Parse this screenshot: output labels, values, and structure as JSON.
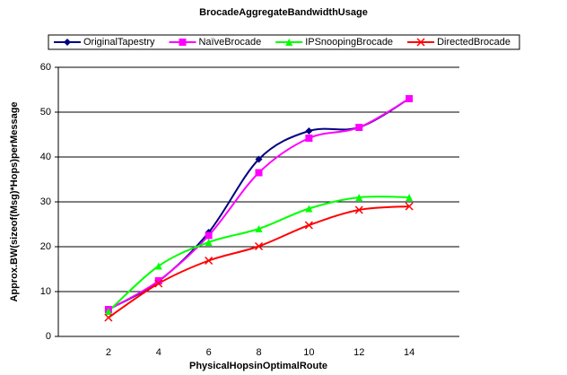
{
  "chart_data": {
    "type": "line",
    "title": "BrocadeAggregateBandwidthUsage",
    "x_label": "PhysicalHopsinOptimalRoute",
    "y_label": "Approx.BW(sizeof(Msg)*Hops)perMessage",
    "x": [
      2,
      4,
      6,
      8,
      10,
      12,
      14
    ],
    "xlim": [
      0,
      16
    ],
    "xticks": [
      2,
      4,
      6,
      8,
      10,
      12,
      14
    ],
    "ylim": [
      0,
      60
    ],
    "yticks": [
      0,
      10,
      20,
      30,
      40,
      50,
      60
    ],
    "grid": true,
    "legend": "top",
    "smooth": true,
    "series": [
      {
        "name": "OriginalTapestry",
        "color": "#000080",
        "marker": "diamond",
        "values": [
          6,
          12.3,
          23.2,
          39.5,
          45.8,
          46.6,
          53
        ]
      },
      {
        "name": "NaïveBrocade",
        "color": "#ff00ff",
        "marker": "square",
        "values": [
          6,
          12.4,
          22.5,
          36.5,
          44.2,
          46.6,
          53
        ]
      },
      {
        "name": "IPSnoopingBrocade",
        "color": "#00ff00",
        "marker": "triangle",
        "values": [
          5.6,
          15.7,
          21,
          24,
          28.5,
          31,
          31
        ]
      },
      {
        "name": "DirectedBrocade",
        "color": "#ff0000",
        "marker": "x",
        "values": [
          4.2,
          11.8,
          16.9,
          20.1,
          24.8,
          28.2,
          29
        ]
      }
    ]
  }
}
